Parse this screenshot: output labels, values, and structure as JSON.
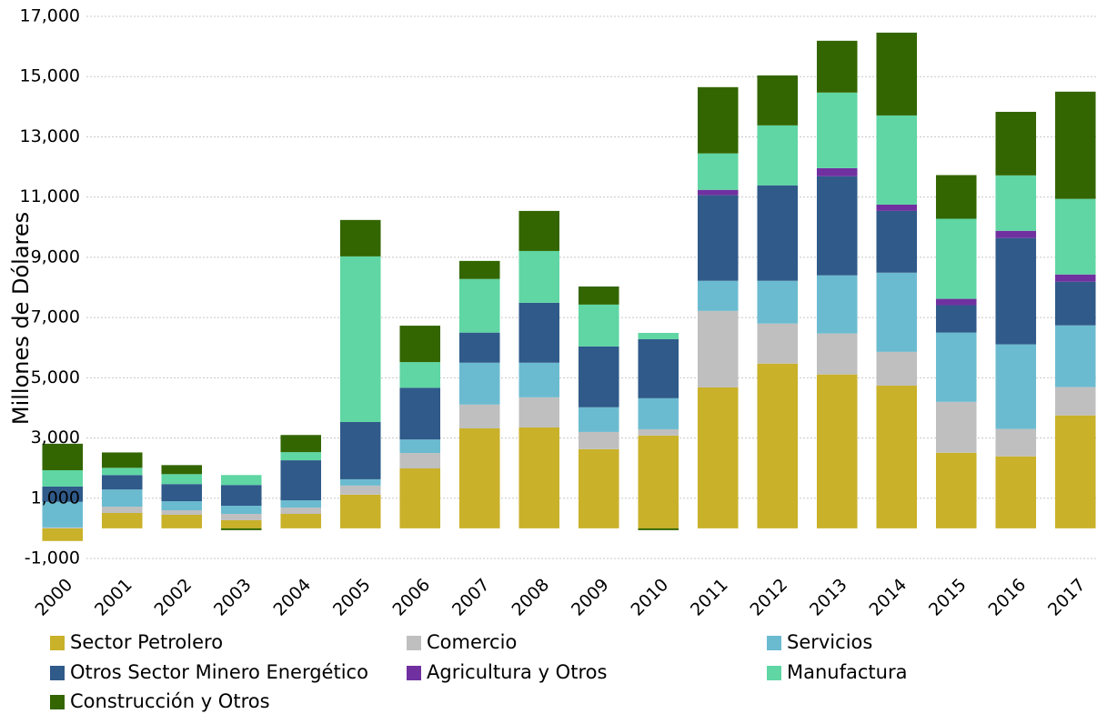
{
  "chart_data": {
    "type": "stacked_bar",
    "y_label": "Millones de Dólares",
    "categories": [
      "2000",
      "2001",
      "2002",
      "2003",
      "2004",
      "2005",
      "2006",
      "2007",
      "2008",
      "2009",
      "2010",
      "2011",
      "2012",
      "2013",
      "2014",
      "2015",
      "2016",
      "2017"
    ],
    "series": [
      {
        "name": "Sector Petrolero",
        "color": "#c9b12a",
        "values": [
          -420,
          510,
          450,
          270,
          480,
          1120,
          1990,
          3320,
          3350,
          2630,
          3080,
          4680,
          5470,
          5110,
          4740,
          2510,
          2390,
          3750
        ]
      },
      {
        "name": "Comercio",
        "color": "#bfbfbf",
        "values": [
          30,
          210,
          150,
          210,
          210,
          300,
          510,
          790,
          1000,
          570,
          210,
          2540,
          1330,
          1360,
          1120,
          1690,
          910,
          940
        ]
      },
      {
        "name": "Servicios",
        "color": "#6bbbd0",
        "values": [
          850,
          570,
          300,
          270,
          240,
          210,
          450,
          1390,
          1150,
          820,
          1030,
          1000,
          1420,
          1930,
          2630,
          2300,
          2810,
          2050
        ]
      },
      {
        "name": "Otros Sector Minero Energético",
        "color": "#2f5a8a",
        "values": [
          510,
          480,
          570,
          690,
          1330,
          1900,
          1720,
          1000,
          1990,
          2020,
          1960,
          2840,
          3170,
          3290,
          2050,
          910,
          3530,
          1450
        ]
      },
      {
        "name": "Agricultura y Otros",
        "color": "#7030a0",
        "values": [
          0,
          0,
          0,
          0,
          0,
          0,
          0,
          0,
          0,
          0,
          0,
          180,
          0,
          270,
          210,
          210,
          240,
          240
        ]
      },
      {
        "name": "Manufactura",
        "color": "#5fd6a3",
        "values": [
          540,
          240,
          330,
          330,
          270,
          5500,
          850,
          1780,
          1720,
          1390,
          210,
          1210,
          1990,
          2510,
          2960,
          2660,
          1840,
          2510
        ]
      },
      {
        "name": "Construcción y Otros",
        "color": "#336600",
        "values": [
          880,
          510,
          300,
          -60,
          570,
          1210,
          1210,
          600,
          1330,
          600,
          -60,
          2200,
          1660,
          1720,
          2750,
          1450,
          2110,
          3560
        ]
      }
    ],
    "ylim": [
      -1000,
      17000
    ],
    "yticks": [
      {
        "value": -1000,
        "label": "-1,000"
      },
      {
        "value": 1000,
        "label": "1,000"
      },
      {
        "value": 3000,
        "label": "3,000"
      },
      {
        "value": 5000,
        "label": "5,000"
      },
      {
        "value": 7000,
        "label": "7,000"
      },
      {
        "value": 9000,
        "label": "9,000"
      },
      {
        "value": 11000,
        "label": "11,000"
      },
      {
        "value": 13000,
        "label": "13,000"
      },
      {
        "value": 15000,
        "label": "15,000"
      },
      {
        "value": 17000,
        "label": "17,000"
      }
    ],
    "grid": true,
    "legend": "bottom"
  }
}
